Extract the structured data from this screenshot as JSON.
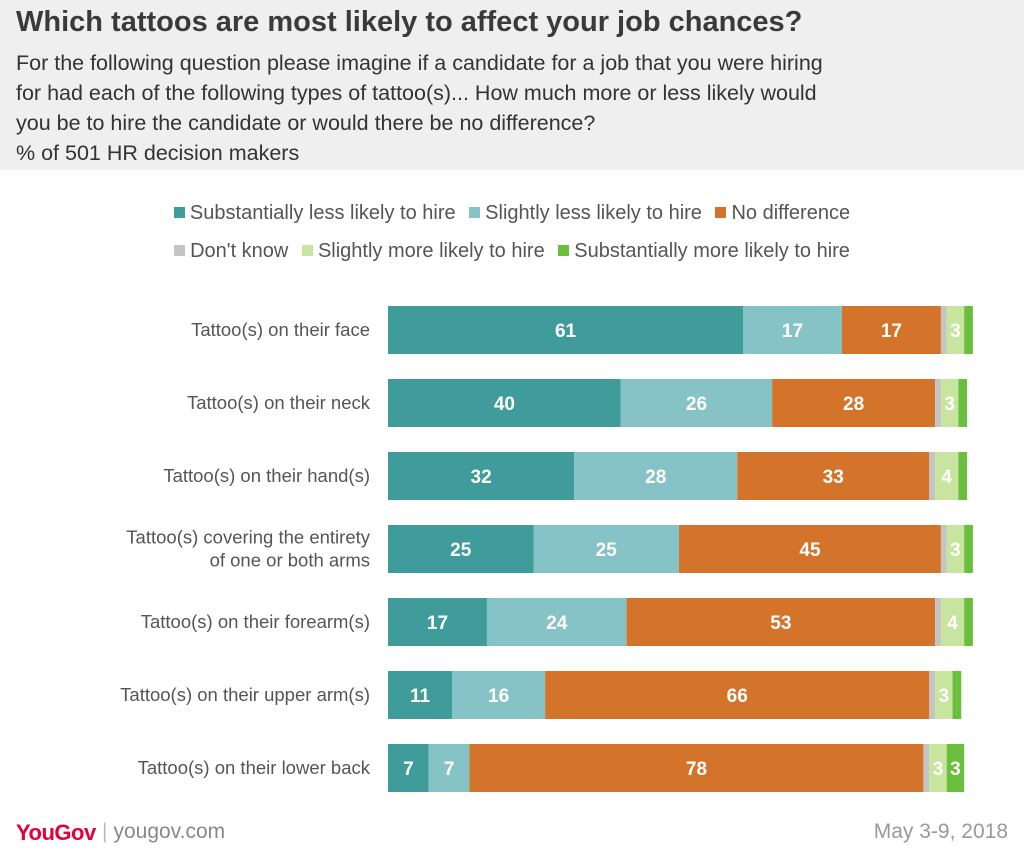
{
  "title": "Which tattoos are most likely to affect your job chances?",
  "subtitle_lines": [
    "For the following question please imagine if a candidate for a job that you were hiring",
    "for had each of the following types of tattoo(s)... How much more or less likely would",
    "you be to hire the candidate or would there be no difference?",
    "% of 501 HR decision makers"
  ],
  "legend": [
    {
      "label": "Substantially less likely to hire",
      "color": "#409b9b"
    },
    {
      "label": "Slightly less likely to hire",
      "color": "#86c3c6"
    },
    {
      "label": "No difference",
      "color": "#d4742b"
    },
    {
      "label": "Don't know",
      "color": "#c4c4c4"
    },
    {
      "label": "Slightly more likely to hire",
      "color": "#c7e59e"
    },
    {
      "label": "Substantially more likely to hire",
      "color": "#6bbf3f"
    }
  ],
  "chart_data": {
    "type": "bar",
    "orientation": "horizontal",
    "stacked": true,
    "unit": "%",
    "categories": [
      [
        "Tattoo(s) on their face"
      ],
      [
        "Tattoo(s) on their neck"
      ],
      [
        "Tattoo(s) on their hand(s)"
      ],
      [
        "Tattoo(s) covering the entirety",
        "of one or both arms"
      ],
      [
        "Tattoo(s) on their forearm(s)"
      ],
      [
        "Tattoo(s) on their upper arm(s)"
      ],
      [
        "Tattoo(s) on their lower back"
      ]
    ],
    "series": [
      {
        "name": "Substantially less likely to hire",
        "values": [
          61,
          40,
          32,
          25,
          17,
          11,
          7
        ],
        "labels": [
          "61",
          "40",
          "32",
          "25",
          "17",
          "11",
          "7"
        ]
      },
      {
        "name": "Slightly less likely to hire",
        "values": [
          17,
          26,
          28,
          25,
          24,
          16,
          7
        ],
        "labels": [
          "17",
          "26",
          "28",
          "25",
          "24",
          "16",
          "7"
        ]
      },
      {
        "name": "No difference",
        "values": [
          17,
          28,
          33,
          45,
          53,
          66,
          78
        ],
        "labels": [
          "17",
          "28",
          "33",
          "45",
          "53",
          "66",
          "78"
        ]
      },
      {
        "name": "Don't know",
        "values": [
          1,
          1,
          1,
          1,
          1,
          1,
          1
        ],
        "labels": [
          "",
          "",
          "",
          "",
          "",
          "",
          ""
        ]
      },
      {
        "name": "Slightly more likely to hire",
        "values": [
          3,
          3,
          4,
          3,
          4,
          3,
          3
        ],
        "labels": [
          "3",
          "3",
          "4",
          "3",
          "4",
          "3",
          "3"
        ]
      },
      {
        "name": "Substantially more likely to hire",
        "values": [
          1.5,
          1.5,
          1.5,
          1.5,
          1.5,
          1.5,
          3
        ],
        "labels": [
          "",
          "",
          "",
          "",
          "",
          "",
          "3"
        ]
      }
    ]
  },
  "footer": {
    "logo": "YouGov",
    "site": "yougov.com",
    "date": "May 3-9, 2018"
  }
}
